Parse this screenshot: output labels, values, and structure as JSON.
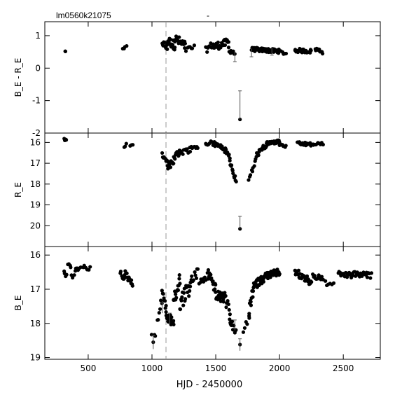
{
  "header": {
    "object_id": "lm0560k21075",
    "subtitle": "-"
  },
  "chart_data": {
    "type": "scatter",
    "xlabel": "HJD - 2450000",
    "xlim": [
      160,
      2790
    ],
    "xticks": [
      500,
      1000,
      1500,
      2000,
      2500
    ],
    "marker_line_x": 1110,
    "panels": [
      {
        "id": "color",
        "ylabel": "B_E - R_E",
        "ylim": [
          1.43,
          -2.0
        ],
        "invert": false,
        "yticks": [
          1,
          0,
          -1,
          -2
        ],
        "series": [
          {
            "segments": [
              [
                320,
                330,
                0.52,
                0.52,
                0.01,
                1
              ]
            ],
            "points": [
              [
                320,
                0.52
              ]
            ]
          },
          {
            "segments": [
              [
                770,
                800,
                0.55,
                0.65,
                0.05,
                4
              ],
              [
                1080,
                1120,
                0.8,
                0.6,
                0.12,
                10
              ],
              [
                1120,
                1180,
                0.85,
                0.7,
                0.14,
                18
              ],
              [
                1180,
                1260,
                0.9,
                0.7,
                0.15,
                18
              ],
              [
                1260,
                1330,
                0.55,
                0.65,
                0.08,
                8
              ],
              [
                1420,
                1480,
                0.55,
                0.75,
                0.1,
                10
              ],
              [
                1480,
                1600,
                0.65,
                0.8,
                0.12,
                25
              ],
              [
                1600,
                1650,
                0.6,
                0.45,
                0.1,
                8
              ],
              [
                1780,
                1900,
                0.58,
                0.55,
                0.06,
                30
              ],
              [
                1900,
                2000,
                0.55,
                0.52,
                0.06,
                28
              ],
              [
                2000,
                2050,
                0.5,
                0.45,
                0.05,
                6
              ],
              [
                2120,
                2250,
                0.55,
                0.52,
                0.06,
                22
              ],
              [
                2280,
                2340,
                0.6,
                0.5,
                0.06,
                10
              ]
            ]
          },
          {
            "outliers": [
              [
                1690,
                -1.58
              ]
            ],
            "errorbars": [
              [
                1690,
                -0.7,
                -1.58
              ],
              [
                1650,
                0.2,
                0.55
              ],
              [
                1780,
                0.35,
                0.6
              ],
              [
                1940,
                0.4,
                0.65
              ]
            ]
          }
        ]
      },
      {
        "id": "red",
        "ylabel": "R_E",
        "ylim": [
          15.55,
          21.0
        ],
        "invert": true,
        "yticks": [
          16,
          17,
          18,
          19,
          20
        ],
        "series": [
          {
            "segments": [
              [
                310,
                330,
                15.85,
                15.9,
                0.04,
                4
              ],
              [
                780,
                800,
                16.2,
                16.1,
                0.05,
                3
              ],
              [
                830,
                850,
                16.15,
                16.1,
                0.05,
                3
              ],
              [
                1080,
                1120,
                16.6,
                16.9,
                0.1,
                10
              ],
              [
                1120,
                1170,
                17.1,
                17.05,
                0.18,
                14
              ],
              [
                1170,
                1220,
                16.7,
                16.5,
                0.15,
                12
              ],
              [
                1220,
                1300,
                16.55,
                16.35,
                0.12,
                12
              ],
              [
                1300,
                1360,
                16.2,
                16.3,
                0.08,
                8
              ],
              [
                1420,
                1480,
                16.1,
                15.95,
                0.08,
                10
              ],
              [
                1480,
                1560,
                16.05,
                16.25,
                0.1,
                20
              ],
              [
                1560,
                1610,
                16.3,
                16.65,
                0.12,
                12
              ],
              [
                1610,
                1660,
                16.9,
                17.9,
                0.12,
                12
              ],
              [
                1760,
                1820,
                17.8,
                16.7,
                0.12,
                10
              ],
              [
                1820,
                1900,
                16.6,
                16.1,
                0.12,
                22
              ],
              [
                1900,
                2000,
                16.05,
                15.95,
                0.08,
                30
              ],
              [
                2000,
                2050,
                16.1,
                16.2,
                0.05,
                8
              ],
              [
                2140,
                2250,
                16.05,
                16.1,
                0.08,
                24
              ],
              [
                2260,
                2340,
                16.1,
                16.05,
                0.06,
                12
              ]
            ]
          },
          {
            "outliers": [
              [
                1690,
                20.15
              ]
            ],
            "errorbars": [
              [
                1690,
                19.55,
                20.15
              ]
            ]
          }
        ]
      },
      {
        "id": "blue",
        "ylabel": "B_E",
        "ylim": [
          15.75,
          19.05
        ],
        "invert": true,
        "yticks": [
          16,
          17,
          18,
          19
        ],
        "series": [
          {
            "segments": [
              [
                310,
                330,
                16.45,
                16.65,
                0.08,
                4
              ],
              [
                340,
                380,
                16.2,
                16.6,
                0.12,
                6
              ],
              [
                390,
                440,
                16.5,
                16.4,
                0.1,
                7
              ],
              [
                460,
                520,
                16.35,
                16.4,
                0.06,
                6
              ],
              [
                750,
                790,
                16.5,
                16.7,
                0.1,
                8
              ],
              [
                790,
                850,
                16.55,
                16.85,
                0.1,
                12
              ],
              [
                1000,
                1030,
                18.3,
                18.35,
                0.03,
                3
              ],
              [
                1040,
                1080,
                18.0,
                17.3,
                0.12,
                6
              ],
              [
                1080,
                1110,
                17.0,
                17.5,
                0.15,
                8
              ],
              [
                1110,
                1170,
                17.8,
                17.95,
                0.15,
                22
              ],
              [
                1170,
                1220,
                17.4,
                16.7,
                0.2,
                16
              ],
              [
                1220,
                1300,
                17.4,
                16.9,
                0.25,
                20
              ],
              [
                1300,
                1360,
                16.8,
                16.5,
                0.15,
                10
              ],
              [
                1370,
                1440,
                16.8,
                16.6,
                0.12,
                10
              ],
              [
                1440,
                1500,
                16.5,
                17.0,
                0.15,
                14
              ],
              [
                1500,
                1570,
                17.2,
                17.25,
                0.15,
                20
              ],
              [
                1570,
                1610,
                17.3,
                17.6,
                0.15,
                8
              ],
              [
                1610,
                1660,
                17.9,
                18.3,
                0.12,
                14
              ],
              [
                1720,
                1760,
                18.2,
                17.9,
                0.1,
                5
              ],
              [
                1760,
                1800,
                17.7,
                16.9,
                0.15,
                12
              ],
              [
                1800,
                1900,
                16.9,
                16.6,
                0.12,
                30
              ],
              [
                1900,
                2000,
                16.6,
                16.5,
                0.1,
                35
              ],
              [
                2120,
                2250,
                16.5,
                16.8,
                0.12,
                28
              ],
              [
                2260,
                2340,
                16.6,
                16.7,
                0.08,
                12
              ],
              [
                2360,
                2420,
                16.8,
                16.9,
                0.08,
                6
              ],
              [
                2460,
                2560,
                16.55,
                16.6,
                0.08,
                18
              ],
              [
                2560,
                2720,
                16.55,
                16.6,
                0.08,
                26
              ]
            ]
          },
          {
            "outliers": [
              [
                1010,
                18.55
              ],
              [
                1690,
                18.62
              ]
            ],
            "errorbars": [
              [
                1010,
                18.35,
                18.75
              ],
              [
                1690,
                18.45,
                18.8
              ],
              [
                1080,
                17.4,
                17.7
              ],
              [
                1140,
                17.7,
                18.0
              ],
              [
                1650,
                17.9,
                18.2
              ]
            ]
          }
        ]
      }
    ]
  }
}
